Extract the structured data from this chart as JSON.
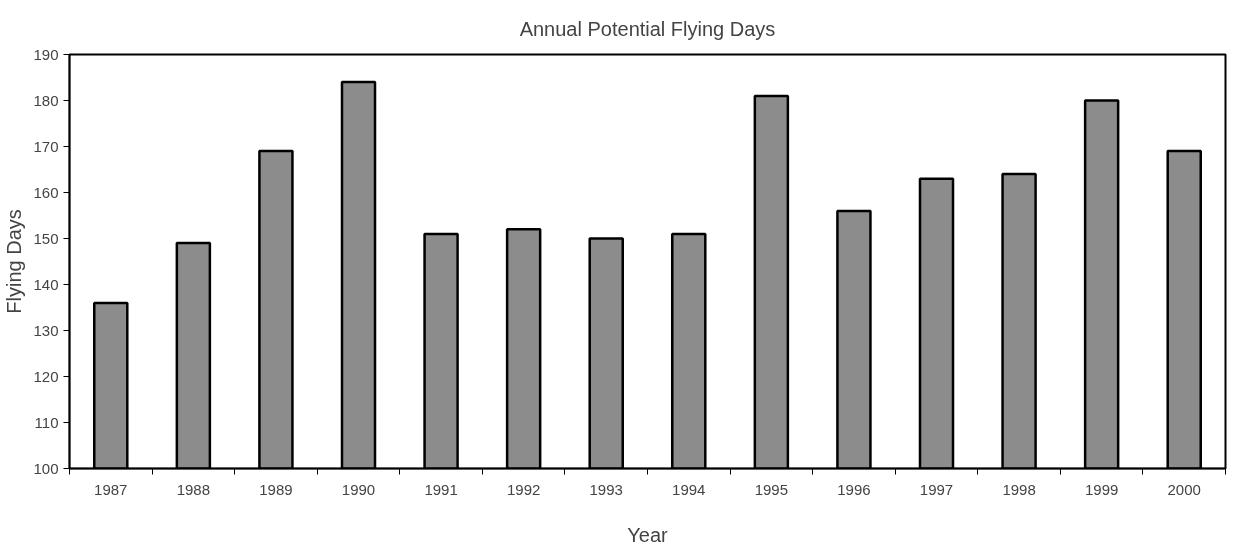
{
  "chart_data": {
    "type": "bar",
    "title": "Annual Potential Flying Days",
    "xlabel": "Year",
    "ylabel": "Flying Days",
    "categories": [
      "1987",
      "1988",
      "1989",
      "1990",
      "1991",
      "1992",
      "1993",
      "1994",
      "1995",
      "1996",
      "1997",
      "1998",
      "1999",
      "2000"
    ],
    "values": [
      136,
      149,
      169,
      184,
      151,
      152,
      150,
      151,
      181,
      156,
      163,
      164,
      180,
      169
    ],
    "color": "#8c8c8c",
    "ylim": [
      100,
      190
    ],
    "yticks": [
      100,
      110,
      120,
      130,
      140,
      150,
      160,
      170,
      180,
      190
    ],
    "grid": false
  }
}
